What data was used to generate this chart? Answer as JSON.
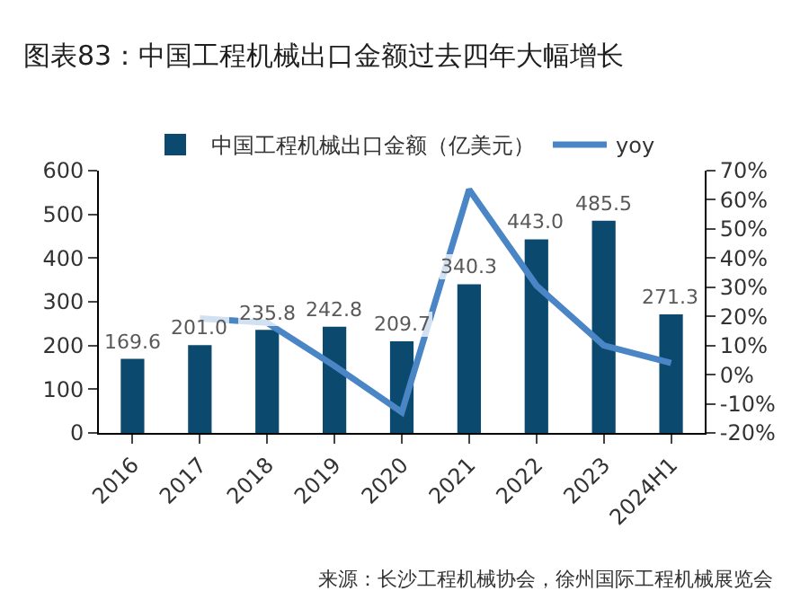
{
  "chart_data": {
    "type": "bar",
    "title": "图表83：中国工程机械出口金额过去四年大幅增长",
    "categories": [
      "2016",
      "2017",
      "2018",
      "2019",
      "2020",
      "2021",
      "2022",
      "2023",
      "2024H1"
    ],
    "series": [
      {
        "name": "中国工程机械出口金额（亿美元）",
        "color": "#0b4a6e",
        "values": [
          169.6,
          201.0,
          235.8,
          242.8,
          209.7,
          340.3,
          443.0,
          485.5,
          271.3
        ],
        "value_labels": [
          "169.6",
          "201.0",
          "235.8",
          "242.8",
          "209.7",
          "340.3",
          "443.0",
          "485.5",
          "271.3"
        ]
      },
      {
        "name": "yoy",
        "type": "line",
        "axis": "y2",
        "color": "#4a86c5",
        "values": [
          null,
          19.3,
          17.8,
          3,
          -12.9,
          63.5,
          30.6,
          10,
          4
        ]
      }
    ],
    "ylim": [
      0,
      600
    ],
    "yticks": [
      0,
      100,
      200,
      300,
      400,
      500,
      600
    ],
    "y2lim": [
      -20,
      70
    ],
    "y2ticks": [
      {
        "value": -20,
        "label": "-20%"
      },
      {
        "value": -10,
        "label": "-10%"
      },
      {
        "value": 0,
        "label": "0%"
      },
      {
        "value": 10,
        "label": "10%"
      },
      {
        "value": 20,
        "label": "20%"
      },
      {
        "value": 30,
        "label": "30%"
      },
      {
        "value": 40,
        "label": "40%"
      },
      {
        "value": 50,
        "label": "50%"
      },
      {
        "value": 60,
        "label": "60%"
      },
      {
        "value": 70,
        "label": "70%"
      }
    ],
    "legend": "top",
    "grid": false,
    "annotations": [
      "来源：长沙工程机械协会，徐州国际工程机械展览会"
    ]
  }
}
